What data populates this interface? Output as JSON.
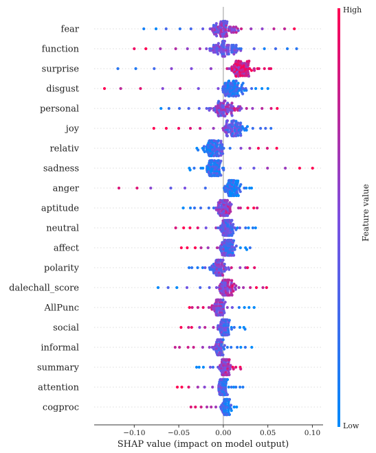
{
  "chart_data": {
    "type": "scatter",
    "subtype": "shap-beeswarm",
    "xlabel": "SHAP value (impact on model output)",
    "xlim": [
      -0.145,
      0.112
    ],
    "xticks": [
      -0.1,
      -0.05,
      0.0,
      0.05,
      0.1
    ],
    "xtick_labels": [
      "−0.10",
      "−0.05",
      "0.00",
      "0.05",
      "0.10"
    ],
    "colorbar": {
      "title": "Feature value",
      "high_label": "High",
      "low_label": "Low",
      "low_color": "#008afb",
      "mid_color": "#7c4fe0",
      "high_color": "#ff0052"
    },
    "grid": "horizontal dotted",
    "features": [
      {
        "name": "fear",
        "min": -0.09,
        "max": 0.08,
        "center": 0.0,
        "trend": 1,
        "spread": 0.02
      },
      {
        "name": "function",
        "min": -0.1,
        "max": 0.083,
        "center": 0.0,
        "trend": -1,
        "spread": 0.025
      },
      {
        "name": "surprise",
        "min": -0.12,
        "max": 0.055,
        "center": 0.02,
        "trend": 1,
        "spread": 0.02
      },
      {
        "name": "disgust",
        "min": -0.135,
        "max": 0.05,
        "center": 0.01,
        "trend": -1,
        "spread": 0.02
      },
      {
        "name": "personal",
        "min": -0.07,
        "max": 0.062,
        "center": 0.0,
        "trend": 1,
        "spread": 0.025
      },
      {
        "name": "joy",
        "min": -0.078,
        "max": 0.055,
        "center": 0.01,
        "trend": -1,
        "spread": 0.018
      },
      {
        "name": "relativ",
        "min": -0.03,
        "max": 0.06,
        "center": -0.01,
        "trend": 1,
        "spread": 0.015
      },
      {
        "name": "sadness",
        "min": -0.04,
        "max": 0.102,
        "center": -0.01,
        "trend": 1,
        "spread": 0.012
      },
      {
        "name": "anger",
        "min": -0.118,
        "max": 0.032,
        "center": 0.01,
        "trend": -1,
        "spread": 0.012
      },
      {
        "name": "aptitude",
        "min": -0.045,
        "max": 0.038,
        "center": 0.0,
        "trend": 1,
        "spread": 0.012
      },
      {
        "name": "neutral",
        "min": -0.055,
        "max": 0.038,
        "center": 0.005,
        "trend": -1,
        "spread": 0.012
      },
      {
        "name": "affect",
        "min": -0.048,
        "max": 0.032,
        "center": 0.005,
        "trend": -1,
        "spread": 0.012
      },
      {
        "name": "polarity",
        "min": -0.04,
        "max": 0.035,
        "center": -0.005,
        "trend": 1,
        "spread": 0.012
      },
      {
        "name": "dalechall_score",
        "min": -0.075,
        "max": 0.05,
        "center": 0.005,
        "trend": 1,
        "spread": 0.012
      },
      {
        "name": "AllPunc",
        "min": -0.038,
        "max": 0.035,
        "center": -0.005,
        "trend": -1,
        "spread": 0.01
      },
      {
        "name": "social",
        "min": -0.048,
        "max": 0.025,
        "center": 0.0,
        "trend": -1,
        "spread": 0.01
      },
      {
        "name": "informal",
        "min": -0.055,
        "max": 0.032,
        "center": -0.005,
        "trend": -1,
        "spread": 0.01
      },
      {
        "name": "summary",
        "min": -0.03,
        "max": 0.02,
        "center": 0.002,
        "trend": 1,
        "spread": 0.008
      },
      {
        "name": "attention",
        "min": -0.053,
        "max": 0.022,
        "center": 0.0,
        "trend": -1,
        "spread": 0.008
      },
      {
        "name": "cogproc",
        "min": -0.038,
        "max": 0.015,
        "center": 0.003,
        "trend": -1,
        "spread": 0.007
      }
    ]
  }
}
